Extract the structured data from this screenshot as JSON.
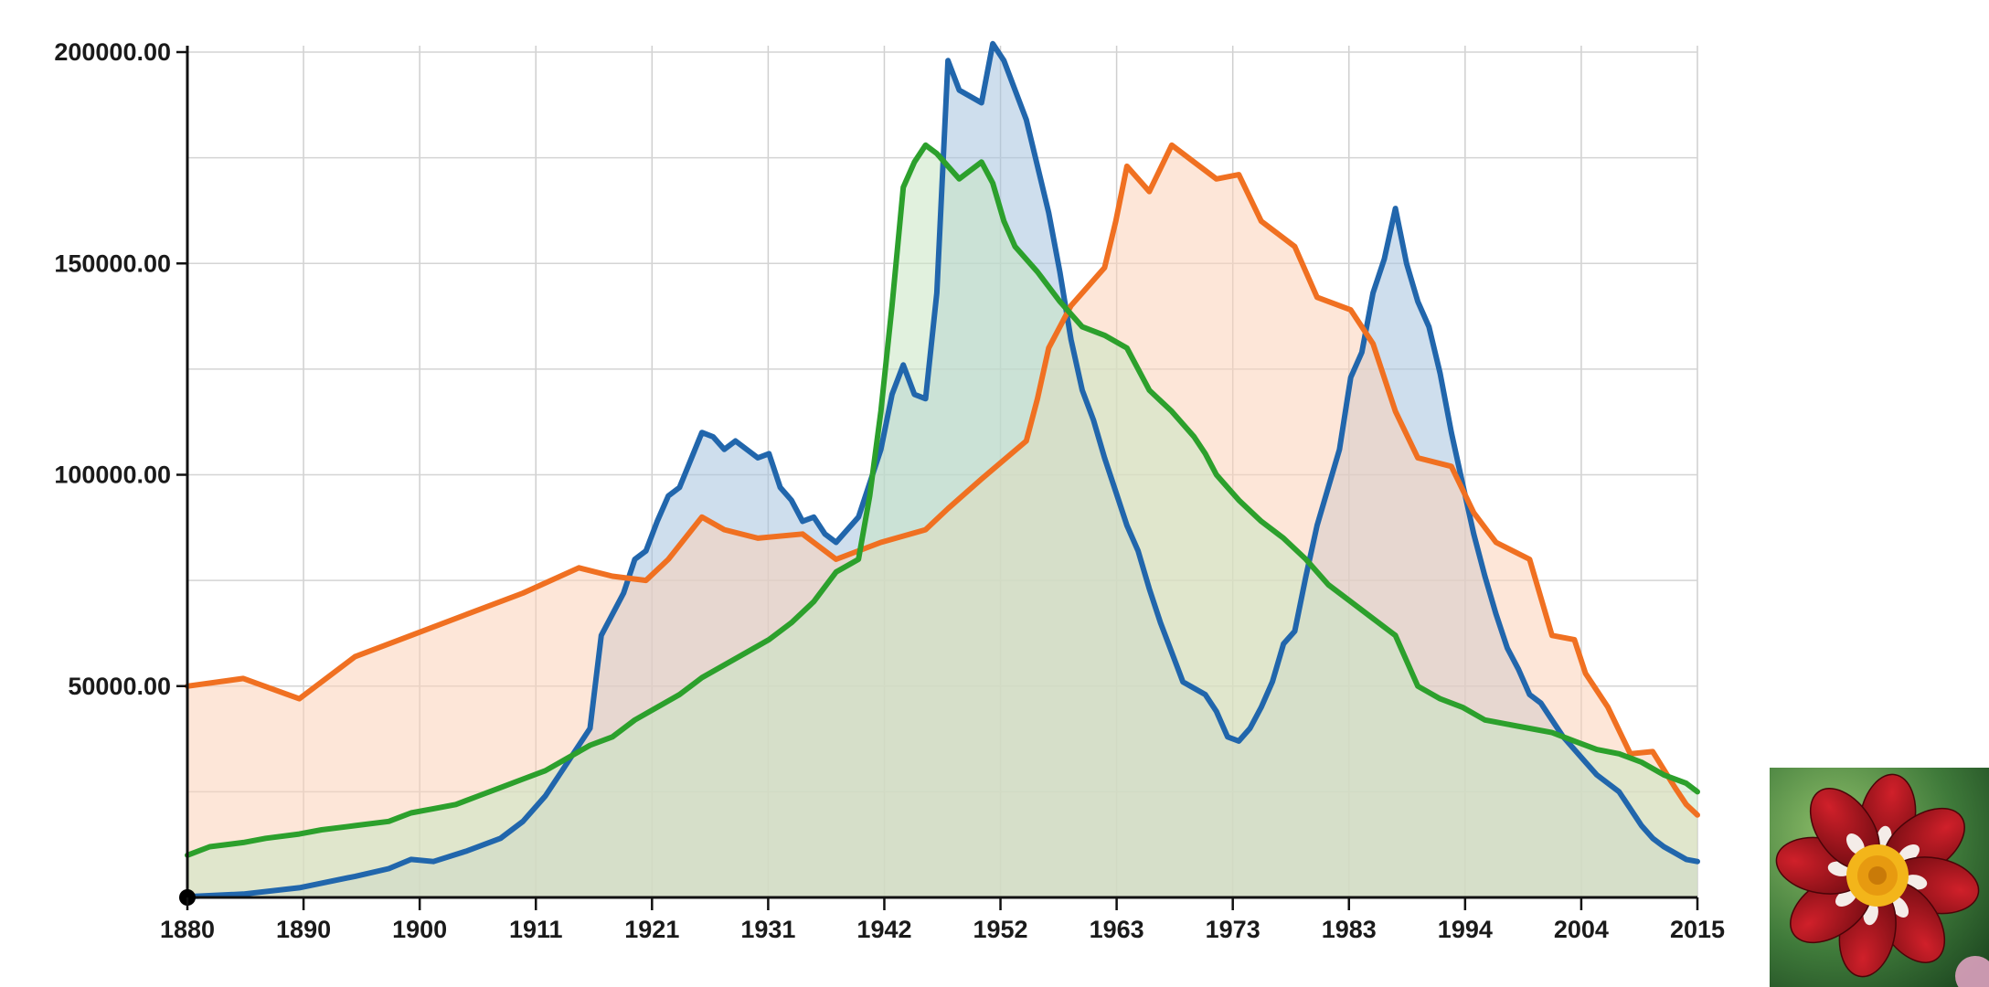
{
  "chart_data": {
    "type": "area",
    "title": "",
    "xlabel": "",
    "ylabel": "",
    "xlim": [
      1880,
      2015
    ],
    "ylim": [
      0,
      200000
    ],
    "grid": true,
    "legend": "none",
    "x_tick_labels": [
      "1880",
      "1890",
      "1900",
      "1911",
      "1921",
      "1931",
      "1942",
      "1952",
      "1963",
      "1973",
      "1983",
      "1994",
      "2004",
      "2015"
    ],
    "y_tick_labels": [
      "50000.00",
      "100000.00",
      "150000.00",
      "200000.00"
    ],
    "y_tick_values": [
      50000,
      100000,
      150000,
      200000
    ],
    "series": [
      {
        "color": "#2166ac",
        "fill": "#a6c3df",
        "points": [
          [
            1880,
            200
          ],
          [
            1885,
            800
          ],
          [
            1890,
            2300
          ],
          [
            1895,
            5000
          ],
          [
            1898,
            6800
          ],
          [
            1900,
            9000
          ],
          [
            1902,
            8500
          ],
          [
            1905,
            11000
          ],
          [
            1908,
            14000
          ],
          [
            1910,
            18000
          ],
          [
            1912,
            24000
          ],
          [
            1914,
            32000
          ],
          [
            1916,
            40000
          ],
          [
            1917,
            62000
          ],
          [
            1919,
            72000
          ],
          [
            1920,
            80000
          ],
          [
            1921,
            82000
          ],
          [
            1922,
            89000
          ],
          [
            1923,
            95000
          ],
          [
            1924,
            97000
          ],
          [
            1926,
            110000
          ],
          [
            1927,
            109000
          ],
          [
            1928,
            106000
          ],
          [
            1929,
            108000
          ],
          [
            1931,
            104000
          ],
          [
            1932,
            105000
          ],
          [
            1933,
            97000
          ],
          [
            1934,
            94000
          ],
          [
            1935,
            89000
          ],
          [
            1936,
            90000
          ],
          [
            1937,
            86000
          ],
          [
            1938,
            84000
          ],
          [
            1940,
            90000
          ],
          [
            1942,
            106000
          ],
          [
            1943,
            119000
          ],
          [
            1944,
            126000
          ],
          [
            1945,
            119000
          ],
          [
            1946,
            118000
          ],
          [
            1947,
            143000
          ],
          [
            1948,
            198000
          ],
          [
            1949,
            191000
          ],
          [
            1951,
            188000
          ],
          [
            1952,
            202000
          ],
          [
            1953,
            198000
          ],
          [
            1954,
            191000
          ],
          [
            1955,
            184000
          ],
          [
            1957,
            162000
          ],
          [
            1958,
            148000
          ],
          [
            1959,
            132000
          ],
          [
            1960,
            120000
          ],
          [
            1961,
            113000
          ],
          [
            1962,
            104000
          ],
          [
            1963,
            96000
          ],
          [
            1964,
            88000
          ],
          [
            1965,
            82000
          ],
          [
            1966,
            73000
          ],
          [
            1967,
            65000
          ],
          [
            1968,
            58000
          ],
          [
            1969,
            51000
          ],
          [
            1971,
            48000
          ],
          [
            1972,
            44000
          ],
          [
            1973,
            38000
          ],
          [
            1974,
            37000
          ],
          [
            1975,
            40000
          ],
          [
            1976,
            45000
          ],
          [
            1977,
            51000
          ],
          [
            1978,
            60000
          ],
          [
            1979,
            63000
          ],
          [
            1980,
            76000
          ],
          [
            1981,
            88000
          ],
          [
            1983,
            106000
          ],
          [
            1984,
            123000
          ],
          [
            1985,
            129000
          ],
          [
            1986,
            143000
          ],
          [
            1987,
            151000
          ],
          [
            1988,
            163000
          ],
          [
            1989,
            150000
          ],
          [
            1990,
            141000
          ],
          [
            1991,
            135000
          ],
          [
            1992,
            124000
          ],
          [
            1993,
            110000
          ],
          [
            1994,
            98000
          ],
          [
            1995,
            86000
          ],
          [
            1996,
            76000
          ],
          [
            1997,
            67000
          ],
          [
            1998,
            59000
          ],
          [
            1999,
            54000
          ],
          [
            2000,
            48000
          ],
          [
            2001,
            46000
          ],
          [
            2002,
            42000
          ],
          [
            2003,
            38000
          ],
          [
            2004,
            35000
          ],
          [
            2005,
            32000
          ],
          [
            2006,
            29000
          ],
          [
            2008,
            25000
          ],
          [
            2009,
            21000
          ],
          [
            2010,
            17000
          ],
          [
            2011,
            14000
          ],
          [
            2012,
            12000
          ],
          [
            2013,
            10500
          ],
          [
            2014,
            9000
          ],
          [
            2015,
            8500
          ]
        ]
      },
      {
        "color": "#f07021",
        "fill": "#fcd2b8",
        "points": [
          [
            1880,
            50000
          ],
          [
            1885,
            51800
          ],
          [
            1890,
            47000
          ],
          [
            1895,
            57000
          ],
          [
            1900,
            62000
          ],
          [
            1905,
            67000
          ],
          [
            1910,
            72000
          ],
          [
            1915,
            78000
          ],
          [
            1918,
            76000
          ],
          [
            1921,
            75000
          ],
          [
            1923,
            80000
          ],
          [
            1926,
            90000
          ],
          [
            1928,
            87000
          ],
          [
            1931,
            85000
          ],
          [
            1935,
            86000
          ],
          [
            1938,
            80000
          ],
          [
            1942,
            84000
          ],
          [
            1946,
            87000
          ],
          [
            1948,
            92000
          ],
          [
            1951,
            99000
          ],
          [
            1955,
            108000
          ],
          [
            1956,
            118000
          ],
          [
            1957,
            130000
          ],
          [
            1959,
            140000
          ],
          [
            1962,
            149000
          ],
          [
            1963,
            160000
          ],
          [
            1964,
            173000
          ],
          [
            1966,
            167000
          ],
          [
            1968,
            178000
          ],
          [
            1970,
            174000
          ],
          [
            1972,
            170000
          ],
          [
            1974,
            171000
          ],
          [
            1976,
            160000
          ],
          [
            1979,
            154000
          ],
          [
            1981,
            142000
          ],
          [
            1984,
            139000
          ],
          [
            1986,
            131000
          ],
          [
            1988,
            115000
          ],
          [
            1990,
            104000
          ],
          [
            1993,
            102000
          ],
          [
            1995,
            91000
          ],
          [
            1997,
            84000
          ],
          [
            2000,
            80000
          ],
          [
            2002,
            62000
          ],
          [
            2004,
            61000
          ],
          [
            2005,
            53000
          ],
          [
            2007,
            45000
          ],
          [
            2009,
            34000
          ],
          [
            2011,
            34500
          ],
          [
            2013,
            26000
          ],
          [
            2014,
            22000
          ],
          [
            2015,
            19500
          ]
        ]
      },
      {
        "color": "#2ca02c",
        "fill": "#c8e6c3",
        "points": [
          [
            1880,
            10000
          ],
          [
            1882,
            12000
          ],
          [
            1885,
            13000
          ],
          [
            1887,
            14000
          ],
          [
            1890,
            15000
          ],
          [
            1892,
            16000
          ],
          [
            1895,
            17000
          ],
          [
            1898,
            18000
          ],
          [
            1900,
            20000
          ],
          [
            1902,
            21000
          ],
          [
            1904,
            22000
          ],
          [
            1906,
            24000
          ],
          [
            1908,
            26000
          ],
          [
            1910,
            28000
          ],
          [
            1912,
            30000
          ],
          [
            1914,
            33000
          ],
          [
            1916,
            36000
          ],
          [
            1918,
            38000
          ],
          [
            1920,
            42000
          ],
          [
            1922,
            45000
          ],
          [
            1924,
            48000
          ],
          [
            1926,
            52000
          ],
          [
            1928,
            55000
          ],
          [
            1930,
            58000
          ],
          [
            1932,
            61000
          ],
          [
            1934,
            65000
          ],
          [
            1936,
            70000
          ],
          [
            1938,
            77000
          ],
          [
            1940,
            80000
          ],
          [
            1941,
            95000
          ],
          [
            1942,
            115000
          ],
          [
            1943,
            140000
          ],
          [
            1944,
            168000
          ],
          [
            1945,
            174000
          ],
          [
            1946,
            178000
          ],
          [
            1947,
            176000
          ],
          [
            1948,
            173000
          ],
          [
            1949,
            170000
          ],
          [
            1950,
            172000
          ],
          [
            1951,
            174000
          ],
          [
            1952,
            169000
          ],
          [
            1953,
            160000
          ],
          [
            1954,
            154000
          ],
          [
            1956,
            148000
          ],
          [
            1958,
            141000
          ],
          [
            1960,
            135000
          ],
          [
            1962,
            133000
          ],
          [
            1964,
            130000
          ],
          [
            1966,
            120000
          ],
          [
            1968,
            115000
          ],
          [
            1970,
            109000
          ],
          [
            1971,
            105000
          ],
          [
            1972,
            100000
          ],
          [
            1973,
            97000
          ],
          [
            1974,
            94000
          ],
          [
            1976,
            89000
          ],
          [
            1978,
            85000
          ],
          [
            1980,
            80000
          ],
          [
            1982,
            74000
          ],
          [
            1984,
            70000
          ],
          [
            1986,
            66000
          ],
          [
            1988,
            62000
          ],
          [
            1990,
            50000
          ],
          [
            1992,
            47000
          ],
          [
            1994,
            45000
          ],
          [
            1996,
            42000
          ],
          [
            1998,
            41000
          ],
          [
            2000,
            40000
          ],
          [
            2002,
            39000
          ],
          [
            2004,
            37000
          ],
          [
            2006,
            35000
          ],
          [
            2008,
            34000
          ],
          [
            2010,
            32000
          ],
          [
            2012,
            29000
          ],
          [
            2014,
            27000
          ],
          [
            2015,
            25000
          ]
        ]
      }
    ]
  },
  "thumbnail": {
    "subject": "red-dahlia-flower"
  }
}
